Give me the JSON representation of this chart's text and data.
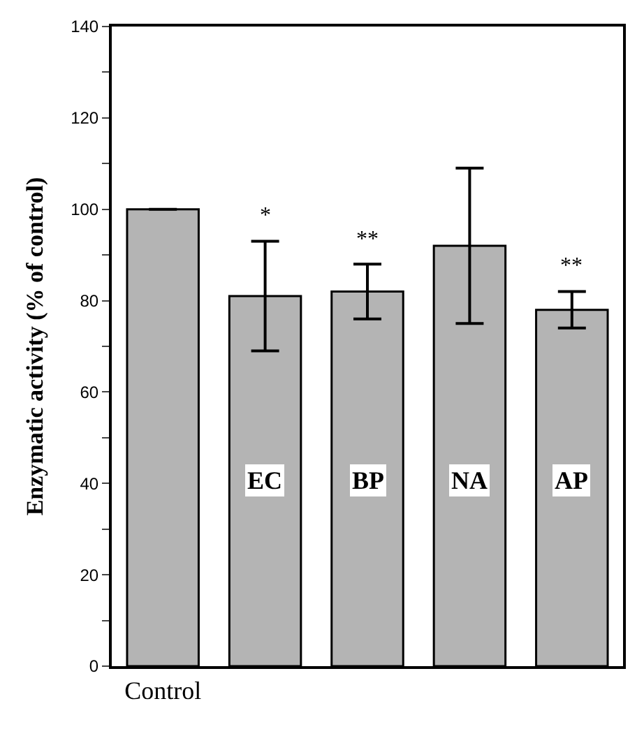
{
  "chart_data": {
    "type": "bar",
    "ylabel": "Enzymatic activity (% of control)",
    "categories": [
      "Control",
      "EC",
      "BP",
      "NA",
      "AP"
    ],
    "values": [
      100,
      81,
      82,
      92,
      78
    ],
    "errors": [
      null,
      12,
      6,
      17,
      4
    ],
    "color": "#b4b4b4",
    "ylim": [
      0,
      140
    ],
    "yticks": [
      0,
      {
        "value": 10,
        "label": null
      },
      20,
      {
        "value": 30,
        "label": null
      },
      40,
      {
        "value": 50,
        "label": null
      },
      60,
      {
        "value": 70,
        "label": null
      },
      80,
      {
        "value": 90,
        "label": null
      },
      100,
      {
        "value": 110,
        "label": null
      },
      120,
      {
        "value": 130,
        "label": null
      },
      140
    ],
    "annotations": [
      {
        "text": "*",
        "x": "EC",
        "y": 93
      },
      {
        "text": "**",
        "x": "BP",
        "y": 88
      },
      {
        "text": "**",
        "x": "AP",
        "y": 82
      }
    ]
  }
}
